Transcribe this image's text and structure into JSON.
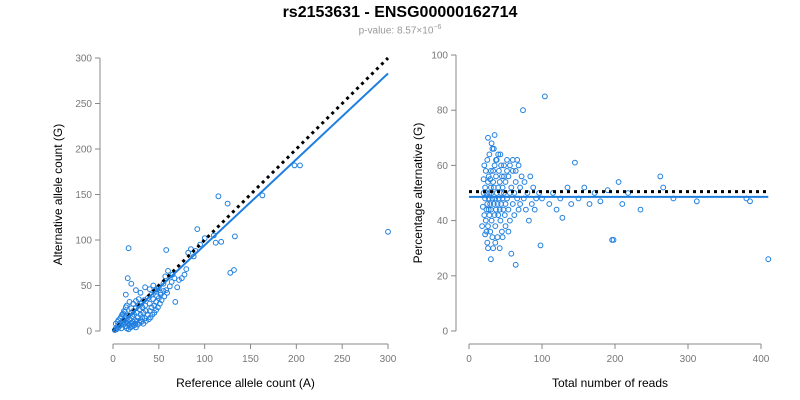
{
  "header": {
    "title": "rs2153631 - ENSG00000162714",
    "subtitle_prefix": "p-value: 8.57×10",
    "subtitle_exp": "−6"
  },
  "colors": {
    "points": "#1f7fdf",
    "fit": "#1f7fdf",
    "reference": "#000000",
    "axis": "#888888"
  },
  "chart_data": [
    {
      "type": "scatter",
      "xlabel": "Reference allele count (A)",
      "ylabel": "Alternative allele count (G)",
      "xlim": [
        0,
        300
      ],
      "ylim": [
        0,
        300
      ],
      "xticks": [
        0,
        50,
        100,
        150,
        200,
        250,
        300
      ],
      "yticks": [
        0,
        50,
        100,
        150,
        200,
        250,
        300
      ],
      "reference_line": {
        "style": "dotted",
        "from": [
          0,
          0
        ],
        "to": [
          300,
          300
        ]
      },
      "fit_line": {
        "style": "solid",
        "from": [
          0,
          0
        ],
        "to": [
          300,
          283
        ]
      },
      "points": [
        [
          2,
          1
        ],
        [
          3,
          3
        ],
        [
          4,
          2
        ],
        [
          5,
          5
        ],
        [
          6,
          4
        ],
        [
          7,
          8
        ],
        [
          8,
          6
        ],
        [
          9,
          3
        ],
        [
          10,
          10
        ],
        [
          11,
          7
        ],
        [
          12,
          12
        ],
        [
          13,
          9
        ],
        [
          14,
          5
        ],
        [
          15,
          14
        ],
        [
          16,
          11
        ],
        [
          17,
          17
        ],
        [
          18,
          13
        ],
        [
          19,
          8
        ],
        [
          20,
          20
        ],
        [
          21,
          16
        ],
        [
          22,
          22
        ],
        [
          23,
          18
        ],
        [
          24,
          12
        ],
        [
          25,
          25
        ],
        [
          26,
          20
        ],
        [
          27,
          15
        ],
        [
          28,
          28
        ],
        [
          29,
          24
        ],
        [
          30,
          18
        ],
        [
          31,
          30
        ],
        [
          32,
          26
        ],
        [
          33,
          20
        ],
        [
          34,
          34
        ],
        [
          35,
          28
        ],
        [
          36,
          22
        ],
        [
          38,
          36
        ],
        [
          40,
          30
        ],
        [
          42,
          40
        ],
        [
          44,
          35
        ],
        [
          46,
          44
        ],
        [
          48,
          38
        ],
        [
          50,
          48
        ],
        [
          52,
          42
        ],
        [
          55,
          52
        ],
        [
          58,
          45
        ],
        [
          15,
          28
        ],
        [
          18,
          32
        ],
        [
          20,
          25
        ],
        [
          22,
          30
        ],
        [
          25,
          33
        ],
        [
          28,
          35
        ],
        [
          10,
          18
        ],
        [
          12,
          22
        ],
        [
          14,
          26
        ],
        [
          16,
          8
        ],
        [
          18,
          6
        ],
        [
          20,
          9
        ],
        [
          22,
          10
        ],
        [
          24,
          8
        ],
        [
          26,
          11
        ],
        [
          30,
          12
        ],
        [
          32,
          15
        ],
        [
          35,
          14
        ],
        [
          38,
          18
        ],
        [
          40,
          22
        ],
        [
          42,
          26
        ],
        [
          45,
          28
        ],
        [
          47,
          32
        ],
        [
          50,
          36
        ],
        [
          14,
          40
        ],
        [
          16,
          58
        ],
        [
          17,
          91
        ],
        [
          20,
          52
        ],
        [
          25,
          45
        ],
        [
          30,
          42
        ],
        [
          35,
          48
        ],
        [
          40,
          46
        ],
        [
          44,
          50
        ],
        [
          48,
          46
        ],
        [
          52,
          40
        ],
        [
          55,
          44
        ],
        [
          57,
          60
        ],
        [
          60,
          66
        ],
        [
          58,
          89
        ],
        [
          65,
          62
        ],
        [
          68,
          32
        ],
        [
          70,
          48
        ],
        [
          72,
          56
        ],
        [
          75,
          58
        ],
        [
          78,
          62
        ],
        [
          80,
          68
        ],
        [
          82,
          86
        ],
        [
          85,
          90
        ],
        [
          88,
          82
        ],
        [
          90,
          88
        ],
        [
          92,
          112
        ],
        [
          95,
          95
        ],
        [
          100,
          102
        ],
        [
          110,
          105
        ],
        [
          112,
          97
        ],
        [
          115,
          148
        ],
        [
          118,
          98
        ],
        [
          125,
          140
        ],
        [
          128,
          64
        ],
        [
          132,
          67
        ],
        [
          133,
          104
        ],
        [
          163,
          149
        ],
        [
          198,
          182
        ],
        [
          204,
          182
        ],
        [
          300,
          109
        ],
        [
          3,
          8
        ],
        [
          5,
          10
        ],
        [
          6,
          12
        ],
        [
          8,
          14
        ],
        [
          9,
          16
        ],
        [
          11,
          19
        ],
        [
          13,
          21
        ],
        [
          15,
          3
        ],
        [
          17,
          2
        ],
        [
          19,
          4
        ],
        [
          21,
          5
        ],
        [
          23,
          6
        ],
        [
          25,
          4
        ],
        [
          27,
          7
        ],
        [
          29,
          9
        ],
        [
          31,
          10
        ],
        [
          33,
          8
        ],
        [
          36,
          11
        ],
        [
          39,
          13
        ],
        [
          41,
          15
        ],
        [
          43,
          18
        ],
        [
          45,
          20
        ],
        [
          47,
          23
        ],
        [
          49,
          26
        ],
        [
          51,
          30
        ],
        [
          53,
          34
        ],
        [
          56,
          38
        ],
        [
          59,
          42
        ],
        [
          62,
          49
        ],
        [
          64,
          54
        ],
        [
          67,
          58
        ]
      ]
    },
    {
      "type": "scatter",
      "xlabel": "Total number of reads",
      "ylabel": "Percentage alternative (G)",
      "xlim": [
        0,
        400
      ],
      "ylim": [
        0,
        100
      ],
      "xticks": [
        0,
        100,
        200,
        300,
        400
      ],
      "yticks": [
        0,
        20,
        40,
        60,
        80,
        100
      ],
      "reference_line": {
        "style": "dotted",
        "from": [
          0,
          50.5
        ],
        "to": [
          410,
          50.5
        ]
      },
      "fit_line": {
        "style": "solid",
        "from": [
          0,
          48.6
        ],
        "to": [
          410,
          48.6
        ]
      },
      "points": [
        [
          18,
          38
        ],
        [
          19,
          45
        ],
        [
          20,
          50
        ],
        [
          20,
          55
        ],
        [
          21,
          42
        ],
        [
          21,
          60
        ],
        [
          22,
          35
        ],
        [
          22,
          48
        ],
        [
          22,
          52
        ],
        [
          23,
          40
        ],
        [
          23,
          58
        ],
        [
          24,
          44
        ],
        [
          24,
          50
        ],
        [
          25,
          46
        ],
        [
          25,
          62
        ],
        [
          25,
          32
        ],
        [
          26,
          54
        ],
        [
          26,
          38
        ],
        [
          27,
          48
        ],
        [
          27,
          56
        ],
        [
          28,
          42
        ],
        [
          28,
          50
        ],
        [
          28,
          64
        ],
        [
          29,
          36
        ],
        [
          29,
          46
        ],
        [
          30,
          52
        ],
        [
          30,
          44
        ],
        [
          30,
          58
        ],
        [
          31,
          40
        ],
        [
          31,
          50
        ],
        [
          32,
          48
        ],
        [
          32,
          66
        ],
        [
          33,
          54
        ],
        [
          33,
          30
        ],
        [
          34,
          46
        ],
        [
          34,
          52
        ],
        [
          35,
          42
        ],
        [
          35,
          60
        ],
        [
          35,
          71
        ],
        [
          36,
          48
        ],
        [
          36,
          38
        ],
        [
          37,
          56
        ],
        [
          37,
          44
        ],
        [
          38,
          50
        ],
        [
          38,
          62
        ],
        [
          39,
          46
        ],
        [
          39,
          34
        ],
        [
          40,
          52
        ],
        [
          40,
          42
        ],
        [
          41,
          58
        ],
        [
          41,
          48
        ],
        [
          42,
          44
        ],
        [
          42,
          54
        ],
        [
          43,
          40
        ],
        [
          43,
          64
        ],
        [
          44,
          50
        ],
        [
          44,
          46
        ],
        [
          45,
          56
        ],
        [
          45,
          36
        ],
        [
          46,
          48
        ],
        [
          46,
          52
        ],
        [
          47,
          44
        ],
        [
          48,
          60
        ],
        [
          48,
          50
        ],
        [
          49,
          42
        ],
        [
          50,
          54
        ],
        [
          50,
          46
        ],
        [
          52,
          48
        ],
        [
          52,
          62
        ],
        [
          54,
          44
        ],
        [
          54,
          56
        ],
        [
          56,
          50
        ],
        [
          56,
          40
        ],
        [
          58,
          52
        ],
        [
          58,
          28
        ],
        [
          60,
          46
        ],
        [
          60,
          58
        ],
        [
          62,
          50
        ],
        [
          62,
          42
        ],
        [
          64,
          54
        ],
        [
          64,
          24
        ],
        [
          66,
          48
        ],
        [
          66,
          62
        ],
        [
          68,
          44
        ],
        [
          70,
          52
        ],
        [
          70,
          46
        ],
        [
          72,
          56
        ],
        [
          74,
          80
        ],
        [
          75,
          48
        ],
        [
          76,
          54
        ],
        [
          78,
          44
        ],
        [
          80,
          50
        ],
        [
          82,
          40
        ],
        [
          84,
          56
        ],
        [
          86,
          46
        ],
        [
          88,
          52
        ],
        [
          90,
          44
        ],
        [
          92,
          48
        ],
        [
          96,
          50
        ],
        [
          98,
          31
        ],
        [
          100,
          48
        ],
        [
          104,
          85
        ],
        [
          110,
          46
        ],
        [
          115,
          50
        ],
        [
          120,
          44
        ],
        [
          125,
          48
        ],
        [
          128,
          41
        ],
        [
          135,
          52
        ],
        [
          140,
          46
        ],
        [
          145,
          61
        ],
        [
          150,
          48
        ],
        [
          158,
          52
        ],
        [
          165,
          46
        ],
        [
          172,
          50
        ],
        [
          180,
          47
        ],
        [
          190,
          51
        ],
        [
          196,
          33
        ],
        [
          198,
          33
        ],
        [
          205,
          54
        ],
        [
          210,
          46
        ],
        [
          218,
          50
        ],
        [
          235,
          44
        ],
        [
          262,
          56
        ],
        [
          266,
          52
        ],
        [
          280,
          48
        ],
        [
          312,
          47
        ],
        [
          380,
          48
        ],
        [
          385,
          47
        ],
        [
          410,
          26
        ],
        [
          26,
          70
        ],
        [
          31,
          68
        ],
        [
          34,
          66
        ],
        [
          27,
          44
        ],
        [
          29,
          55
        ],
        [
          33,
          58
        ],
        [
          37,
          62
        ],
        [
          40,
          64
        ],
        [
          44,
          60
        ],
        [
          48,
          56
        ],
        [
          52,
          58
        ],
        [
          56,
          60
        ],
        [
          60,
          62
        ],
        [
          64,
          58
        ],
        [
          68,
          60
        ],
        [
          24,
          36
        ],
        [
          26,
          30
        ],
        [
          30,
          26
        ],
        [
          32,
          34
        ],
        [
          36,
          32
        ],
        [
          42,
          30
        ],
        [
          46,
          34
        ],
        [
          50,
          38
        ],
        [
          54,
          36
        ]
      ]
    }
  ]
}
